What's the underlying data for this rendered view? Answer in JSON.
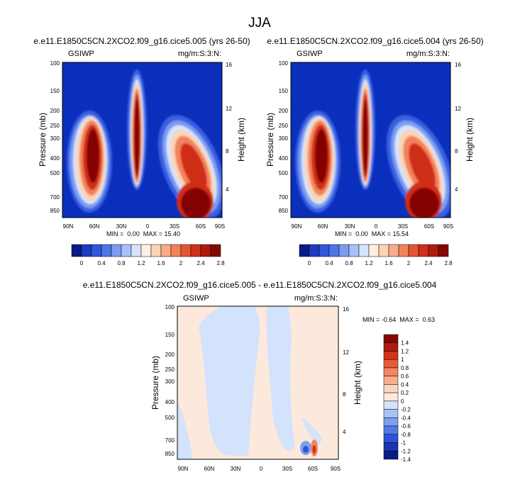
{
  "main_title": "JJA",
  "chart_data": [
    {
      "type": "heatmap",
      "title": "e.e11.E1850C5CN.2XCO2.f09_g16.cice5.005 (yrs 26-50)",
      "left_label": "GSIWP",
      "right_label": "mg/m:S:3:N:",
      "xlabel": "",
      "ylabel": "Pressure (mb)",
      "ylabel_right": "Height (km)",
      "x_ticks": [
        "90N",
        "60N",
        "30N",
        "0",
        "30S",
        "60S",
        "90S"
      ],
      "y_ticks": [
        "100",
        "150",
        "200",
        "250",
        "300",
        "400",
        "500",
        "700",
        "850"
      ],
      "y_ticks_right": [
        "16",
        "12",
        "8",
        "4"
      ],
      "xlim": [
        90,
        -90
      ],
      "ylim_pressure": [
        100,
        925
      ],
      "stats_text": "MIN =  0.00  MAX = 15.40",
      "min": 0.0,
      "max": 15.4,
      "features": [
        {
          "lat": 52,
          "p": 340,
          "amp": 15.4
        },
        {
          "lat": 8,
          "p": 220,
          "amp": 15.4
        },
        {
          "lat": -62,
          "p": 780,
          "amp": 15.4
        },
        {
          "lat": -58,
          "p": 450,
          "amp": 10.5
        }
      ],
      "colorbar": {
        "labels": [
          "0",
          "0.4",
          "0.8",
          "1.2",
          "1.6",
          "2",
          "2.4",
          "2.8"
        ],
        "colors": [
          "#0a1a86",
          "#1c3bc0",
          "#2f57dc",
          "#4e75e8",
          "#7a9cf2",
          "#a9c0f7",
          "#d6e4fb",
          "#fdf0e2",
          "#fbd3b6",
          "#f7ab88",
          "#f1825b",
          "#e65533",
          "#cf2f16",
          "#ad1a0c",
          "#850606"
        ]
      }
    },
    {
      "type": "heatmap",
      "title": "e.e11.E1850C5CN.2XCO2.f09_g16.cice5.004 (yrs 26-50)",
      "left_label": "GSIWP",
      "right_label": "mg/m:S:3:N:",
      "xlabel": "",
      "ylabel": "Pressure (mb)",
      "ylabel_right": "Height (km)",
      "x_ticks": [
        "90N",
        "60N",
        "30N",
        "0",
        "30S",
        "60S",
        "90S"
      ],
      "y_ticks": [
        "100",
        "150",
        "200",
        "250",
        "300",
        "400",
        "500",
        "700",
        "850"
      ],
      "y_ticks_right": [
        "16",
        "12",
        "8",
        "4"
      ],
      "xlim": [
        90,
        -90
      ],
      "ylim_pressure": [
        100,
        925
      ],
      "stats_text": "MIN =  0.00  MAX = 15.54",
      "min": 0.0,
      "max": 15.54,
      "features": [
        {
          "lat": 52,
          "p": 340,
          "amp": 15.5
        },
        {
          "lat": 8,
          "p": 220,
          "amp": 15.5
        },
        {
          "lat": -62,
          "p": 780,
          "amp": 15.5
        },
        {
          "lat": -58,
          "p": 450,
          "amp": 10.6
        }
      ],
      "colorbar": {
        "labels": [
          "0",
          "0.4",
          "0.8",
          "1.2",
          "1.6",
          "2",
          "2.4",
          "2.8"
        ],
        "colors": [
          "#0a1a86",
          "#1c3bc0",
          "#2f57dc",
          "#4e75e8",
          "#7a9cf2",
          "#a9c0f7",
          "#d6e4fb",
          "#fdf0e2",
          "#fbd3b6",
          "#f7ab88",
          "#f1825b",
          "#e65533",
          "#cf2f16",
          "#ad1a0c",
          "#850606"
        ]
      }
    },
    {
      "type": "heatmap",
      "title": "e.e11.E1850C5CN.2XCO2.f09_g16.cice5.005 - e.e11.E1850C5CN.2XCO2.f09_g16.cice5.004",
      "left_label": "GSIWP",
      "right_label": "mg/m:S:3:N:",
      "xlabel": "",
      "ylabel": "Pressure (mb)",
      "ylabel_right": "Height (km)",
      "x_ticks": [
        "90N",
        "60N",
        "30N",
        "0",
        "30S",
        "60S",
        "90S"
      ],
      "y_ticks": [
        "100",
        "150",
        "200",
        "250",
        "300",
        "400",
        "500",
        "700",
        "850"
      ],
      "y_ticks_right": [
        "16",
        "12",
        "8",
        "4"
      ],
      "xlim": [
        90,
        -90
      ],
      "ylim_pressure": [
        100,
        925
      ],
      "stats_text": "MIN = -0.64  MAX =  0.63",
      "min": -0.64,
      "max": 0.63,
      "colorbar": {
        "labels": [
          "1.4",
          "1.2",
          "1",
          "0.8",
          "0.6",
          "0.4",
          "0.2",
          "0",
          "-0.2",
          "-0.4",
          "-0.6",
          "-0.8",
          "-1",
          "-1.2",
          "-1.4"
        ],
        "colors": [
          "#850606",
          "#b01c0c",
          "#d0341a",
          "#e85a36",
          "#f2865e",
          "#f7ae8c",
          "#fbd6bd",
          "#fde9dc",
          "#d3e3fb",
          "#a9c2f5",
          "#7d9ff0",
          "#5379e6",
          "#2e54d6",
          "#1a36b0",
          "#0a1a86"
        ]
      }
    }
  ]
}
